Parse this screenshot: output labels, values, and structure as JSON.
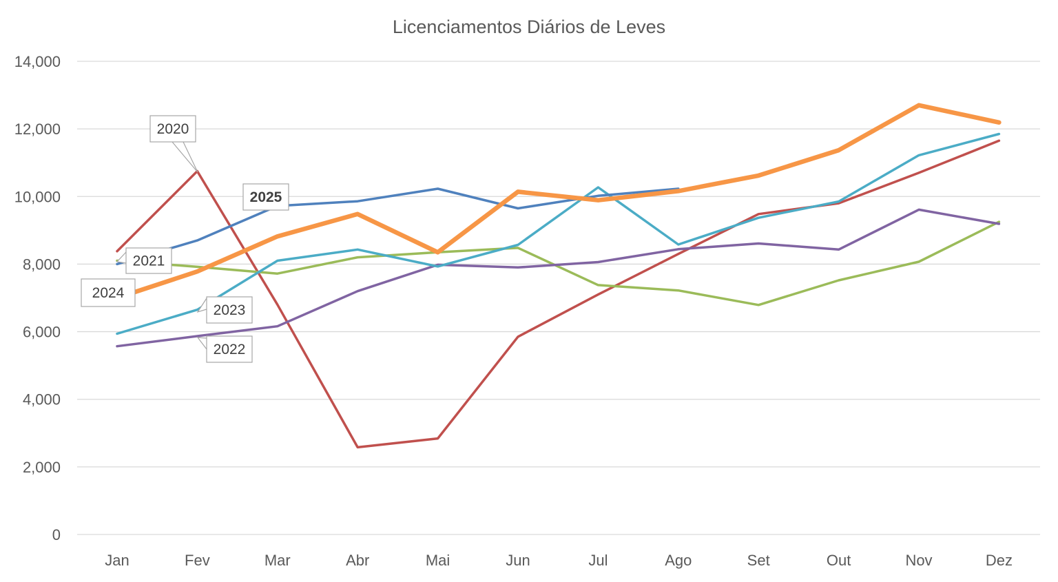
{
  "chart_data": {
    "type": "line",
    "title": "Licenciamentos Diários de Leves",
    "xlabel": "",
    "ylabel": "",
    "categories": [
      "Jan",
      "Fev",
      "Mar",
      "Abr",
      "Mai",
      "Jun",
      "Jul",
      "Ago",
      "Set",
      "Out",
      "Nov",
      "Dez"
    ],
    "ylim": [
      0,
      14000
    ],
    "yticks": [
      0,
      2000,
      4000,
      6000,
      8000,
      10000,
      12000,
      14000
    ],
    "ytick_labels": [
      "0",
      "2,000",
      "4,000",
      "6,000",
      "8,000",
      "10,000",
      "12,000",
      "14,000"
    ],
    "grid": true,
    "legend": "none",
    "series": [
      {
        "name": "2020",
        "color": "#c0504d",
        "width": 3.5,
        "values": [
          8380,
          10750,
          6800,
          2580,
          2840,
          5850,
          7100,
          8300,
          9480,
          9800,
          10700,
          11650
        ]
      },
      {
        "name": "2021",
        "color": "#9bbb59",
        "width": 3.5,
        "values": [
          8100,
          7920,
          7720,
          8200,
          8350,
          8480,
          7380,
          7220,
          6790,
          7520,
          8070,
          9250
        ]
      },
      {
        "name": "2022",
        "color": "#8064a2",
        "width": 3.5,
        "values": [
          5570,
          5870,
          6160,
          7200,
          7980,
          7900,
          8060,
          8440,
          8610,
          8430,
          9610,
          9190
        ]
      },
      {
        "name": "2023",
        "color": "#4bacc6",
        "width": 3.5,
        "values": [
          5940,
          6650,
          8100,
          8430,
          7930,
          8570,
          10270,
          8580,
          9370,
          9850,
          11220,
          11850
        ]
      },
      {
        "name": "2024",
        "color": "#4f81bd",
        "width": 3.5,
        "values": [
          8000,
          8700,
          9720,
          9860,
          10230,
          9650,
          10020,
          10230,
          null,
          null,
          null,
          null
        ]
      },
      {
        "name": "2025",
        "color": "#f79646",
        "width": 6.5,
        "values": [
          7000,
          7780,
          8820,
          9480,
          8350,
          10140,
          9890,
          10160,
          10620,
          11370,
          12700,
          12190
        ]
      }
    ],
    "annotations": [
      {
        "text": "2020",
        "bold": false
      },
      {
        "text": "2021",
        "bold": false
      },
      {
        "text": "2024",
        "bold": false
      },
      {
        "text": "2023",
        "bold": false
      },
      {
        "text": "2022",
        "bold": false
      },
      {
        "text": "2025",
        "bold": true
      }
    ]
  }
}
